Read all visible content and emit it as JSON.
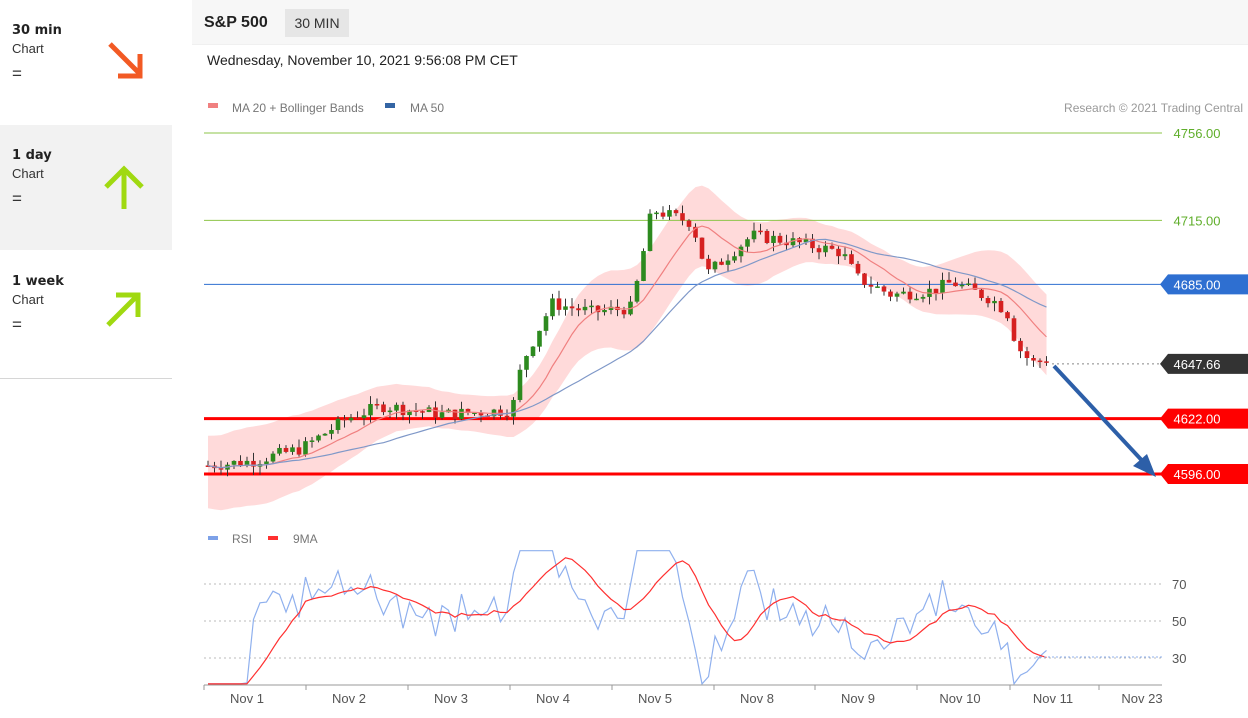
{
  "sidebar": {
    "items": [
      {
        "label": "30 min",
        "sub": "Chart",
        "eq": "=",
        "direction": "down",
        "color": "#f25a24"
      },
      {
        "label": "1 day",
        "sub": "Chart",
        "eq": "=",
        "direction": "up",
        "color": "#a0d911"
      },
      {
        "label": "1 week",
        "sub": "Chart",
        "eq": "=",
        "direction": "up-right",
        "color": "#a0d911"
      }
    ]
  },
  "header": {
    "symbol": "S&P 500",
    "timeframe": "30 MIN",
    "datetime": "Wednesday, November 10, 2021 9:56:08 PM CET"
  },
  "legend": {
    "ma20": "MA 20 + Bollinger Bands",
    "ma50": "MA 50",
    "copyright": "Research © 2021 Trading Central"
  },
  "colors": {
    "ma20": "#f08080",
    "ma50": "#3465a4",
    "band": "#ffd4d4",
    "up": "#2d8a1f",
    "down": "#d62020",
    "support": "#ff0000",
    "resistance": "#8ec44a",
    "pivot": "#2e6fd1",
    "forecast": "#2d5fa8",
    "rsi": "#7da1e8",
    "rsi_ma": "#ff3030"
  },
  "chart_data": {
    "type": "candlestick",
    "x_labels": [
      "Nov 1",
      "Nov 2",
      "Nov 3",
      "Nov 4",
      "Nov 5",
      "Nov 8",
      "Nov 9",
      "Nov 10",
      "Nov 11",
      "Nov 23"
    ],
    "price_levels": [
      {
        "value": 4756.0,
        "label": "4756.00",
        "kind": "resistance",
        "style": "thin",
        "badge": false
      },
      {
        "value": 4715.0,
        "label": "4715.00",
        "kind": "resistance",
        "style": "thin",
        "badge": false
      },
      {
        "value": 4685.0,
        "label": "4685.00",
        "kind": "pivot",
        "style": "thin",
        "badge": true
      },
      {
        "value": 4647.66,
        "label": "4647.66",
        "kind": "last",
        "style": "dotted",
        "badge": true
      },
      {
        "value": 4622.0,
        "label": "4622.00",
        "kind": "support",
        "style": "thick",
        "badge": true
      },
      {
        "value": 4596.0,
        "label": "4596.00",
        "kind": "support",
        "style": "thick",
        "badge": true
      }
    ],
    "last_price": 4647.66,
    "forecast_target": 4596.0,
    "rsi": {
      "legend": "RSI",
      "ma_legend": "9MA",
      "levels": [
        70,
        50,
        30
      ],
      "level_labels": [
        "70",
        "50",
        "30"
      ]
    }
  }
}
